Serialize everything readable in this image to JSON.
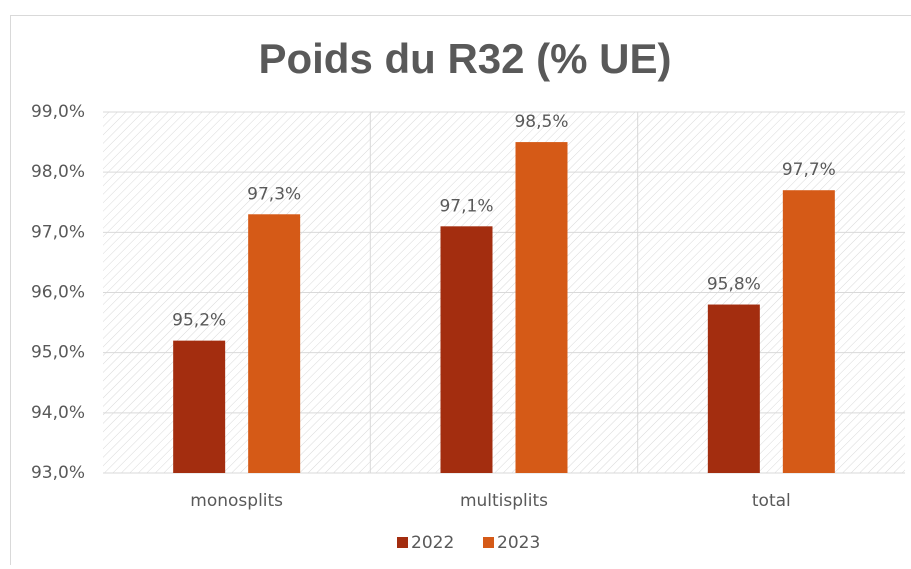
{
  "chart_data": {
    "type": "bar",
    "title": "Poids du R32 (% UE)",
    "categories": [
      "monosplits",
      "multisplits",
      "total"
    ],
    "series": [
      {
        "name": "2022",
        "color": "#a32d0f",
        "values": [
          95.2,
          97.1,
          95.8
        ],
        "value_labels": [
          "95,2%",
          "97,1%",
          "95,8%"
        ]
      },
      {
        "name": "2023",
        "color": "#d55a17",
        "values": [
          97.3,
          98.5,
          97.7
        ],
        "value_labels": [
          "97,3%",
          "98,5%",
          "97,7%"
        ]
      }
    ],
    "ylim": [
      93,
      99
    ],
    "yticks": [
      {
        "value": 93,
        "label": "93,0%"
      },
      {
        "value": 94,
        "label": "94,0%"
      },
      {
        "value": 95,
        "label": "95,0%"
      },
      {
        "value": 96,
        "label": "96,0%"
      },
      {
        "value": 97,
        "label": "97,0%"
      },
      {
        "value": 98,
        "label": "98,0%"
      },
      {
        "value": 99,
        "label": "99,0%"
      }
    ],
    "grid": true,
    "legend": "bottom"
  }
}
